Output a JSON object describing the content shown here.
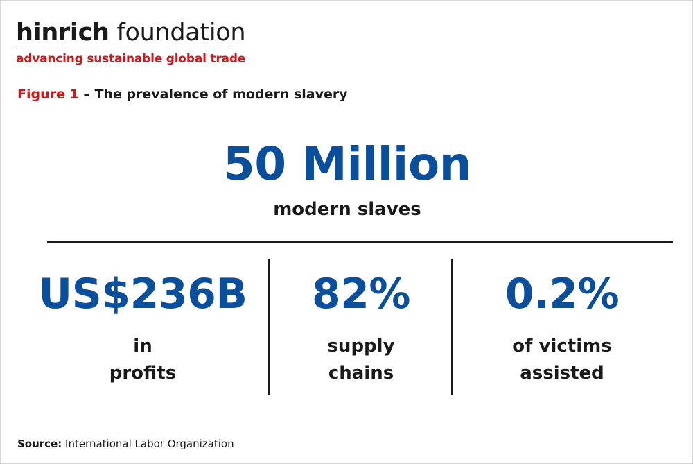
{
  "logo": {
    "name_bold": "hinrich",
    "name_light": "foundation",
    "tagline": "advancing sustainable global trade"
  },
  "figure": {
    "number": "Figure 1",
    "separator": " – ",
    "title": "The prevalence of modern slavery"
  },
  "headline": {
    "value": "50 Million",
    "label": "modern slaves"
  },
  "stats": [
    {
      "value": "US$236B",
      "line1": "in",
      "line2": "profits"
    },
    {
      "value": "82%",
      "line1": "supply",
      "line2": "chains"
    },
    {
      "value": "0.2%",
      "line1": "of victims",
      "line2": "assisted"
    }
  ],
  "source": {
    "label": "Source:",
    "text": " International Labor Organization"
  },
  "colors": {
    "brand_red": "#d7141a",
    "stat_blue": "#0b4f9c",
    "text": "#1a1a1a"
  }
}
